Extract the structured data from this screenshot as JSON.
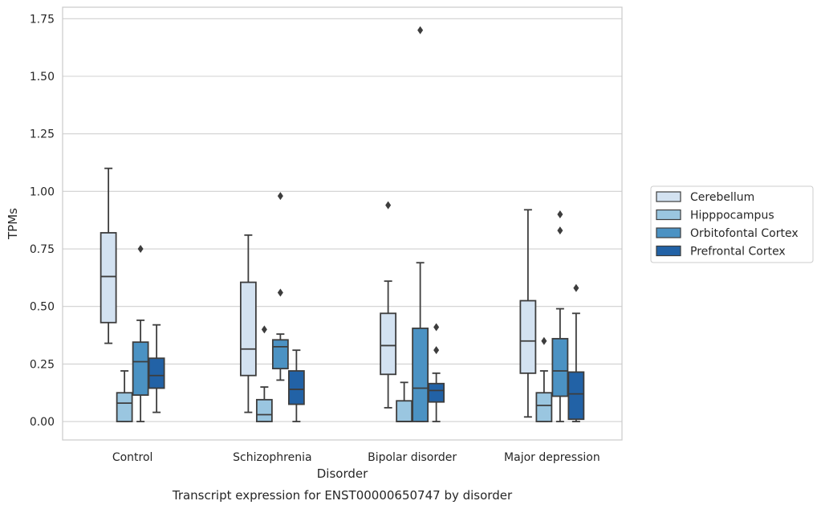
{
  "caption": "Transcript expression for ENST00000650747 by disorder",
  "chart_data": {
    "type": "boxplot",
    "xlabel": "Disorder",
    "ylabel": "TPMs",
    "ylim": [
      -0.08,
      1.8
    ],
    "yticks": [
      "0.00",
      "0.25",
      "0.50",
      "0.75",
      "1.00",
      "1.25",
      "1.50",
      "1.75"
    ],
    "grid": "horizontal",
    "legend_position": "right",
    "categories": [
      "Control",
      "Schizophrenia",
      "Bipolar disorder",
      "Major depression"
    ],
    "series": [
      {
        "name": "Cerebellum",
        "color": "#d3e2f1",
        "boxes": [
          {
            "whisker_low": 0.34,
            "q1": 0.43,
            "median": 0.63,
            "q3": 0.82,
            "whisker_high": 1.1,
            "outliers": []
          },
          {
            "whisker_low": 0.04,
            "q1": 0.2,
            "median": 0.315,
            "q3": 0.605,
            "whisker_high": 0.81,
            "outliers": []
          },
          {
            "whisker_low": 0.06,
            "q1": 0.205,
            "median": 0.33,
            "q3": 0.47,
            "whisker_high": 0.61,
            "outliers": [
              0.94
            ]
          },
          {
            "whisker_low": 0.02,
            "q1": 0.21,
            "median": 0.35,
            "q3": 0.525,
            "whisker_high": 0.92,
            "outliers": []
          }
        ]
      },
      {
        "name": "Hipppocampus",
        "color": "#9ac6e0",
        "boxes": [
          {
            "whisker_low": 0.0,
            "q1": 0.0,
            "median": 0.08,
            "q3": 0.125,
            "whisker_high": 0.22,
            "outliers": []
          },
          {
            "whisker_low": 0.0,
            "q1": 0.0,
            "median": 0.03,
            "q3": 0.095,
            "whisker_high": 0.15,
            "outliers": [
              0.4
            ]
          },
          {
            "whisker_low": 0.0,
            "q1": 0.0,
            "median": 0.0,
            "q3": 0.09,
            "whisker_high": 0.17,
            "outliers": []
          },
          {
            "whisker_low": 0.0,
            "q1": 0.0,
            "median": 0.07,
            "q3": 0.125,
            "whisker_high": 0.22,
            "outliers": [
              0.35
            ]
          }
        ]
      },
      {
        "name": "Orbitofontal Cortex",
        "color": "#4b92c3",
        "boxes": [
          {
            "whisker_low": 0.0,
            "q1": 0.115,
            "median": 0.26,
            "q3": 0.345,
            "whisker_high": 0.44,
            "outliers": [
              0.75
            ]
          },
          {
            "whisker_low": 0.18,
            "q1": 0.23,
            "median": 0.325,
            "q3": 0.355,
            "whisker_high": 0.38,
            "outliers": [
              0.56,
              0.98
            ]
          },
          {
            "whisker_low": 0.0,
            "q1": 0.0,
            "median": 0.145,
            "q3": 0.405,
            "whisker_high": 0.69,
            "outliers": [
              1.7
            ]
          },
          {
            "whisker_low": 0.0,
            "q1": 0.11,
            "median": 0.22,
            "q3": 0.36,
            "whisker_high": 0.49,
            "outliers": [
              0.83,
              0.9
            ]
          }
        ]
      },
      {
        "name": "Prefrontal Cortex",
        "color": "#2262a6",
        "boxes": [
          {
            "whisker_low": 0.04,
            "q1": 0.145,
            "median": 0.2,
            "q3": 0.275,
            "whisker_high": 0.42,
            "outliers": []
          },
          {
            "whisker_low": 0.0,
            "q1": 0.075,
            "median": 0.14,
            "q3": 0.22,
            "whisker_high": 0.31,
            "outliers": []
          },
          {
            "whisker_low": 0.0,
            "q1": 0.085,
            "median": 0.135,
            "q3": 0.165,
            "whisker_high": 0.21,
            "outliers": [
              0.31,
              0.41
            ]
          },
          {
            "whisker_low": 0.0,
            "q1": 0.01,
            "median": 0.12,
            "q3": 0.215,
            "whisker_high": 0.47,
            "outliers": [
              0.58
            ]
          }
        ]
      }
    ]
  }
}
